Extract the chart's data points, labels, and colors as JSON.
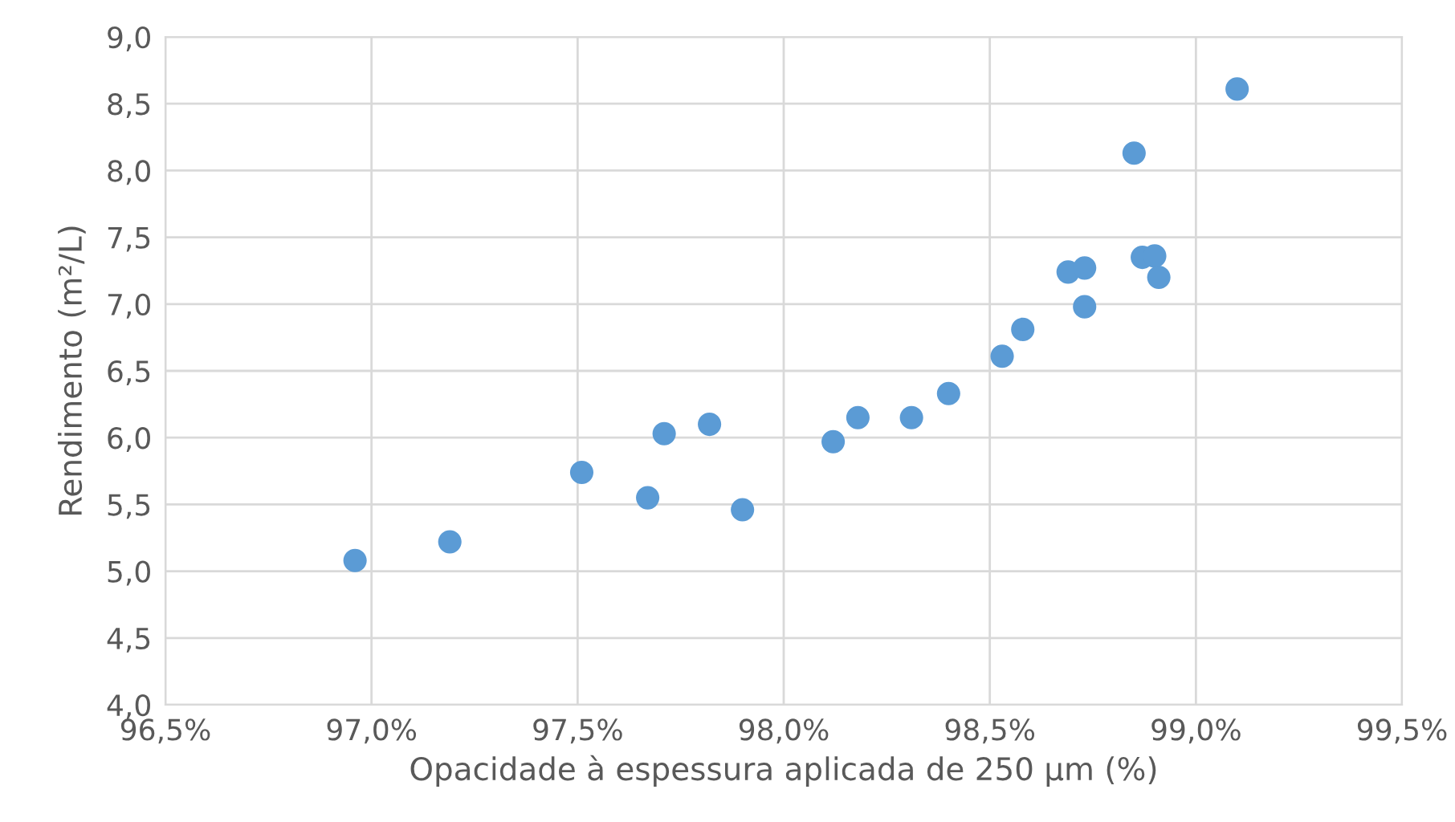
{
  "chart_data": {
    "type": "scatter",
    "xlabel": "Opacidade à espessura aplicada de 250 µm (%)",
    "ylabel": "Rendimento (m²/L)",
    "x": [
      96.96,
      97.19,
      97.51,
      97.67,
      97.71,
      97.82,
      97.9,
      98.12,
      98.18,
      98.31,
      98.4,
      98.53,
      98.58,
      98.69,
      98.73,
      98.73,
      98.85,
      98.87,
      98.9,
      98.91,
      99.1
    ],
    "series": [
      {
        "color": "#5b9bd5",
        "values": [
          5.08,
          5.22,
          5.74,
          5.55,
          6.03,
          6.1,
          5.46,
          5.97,
          6.15,
          6.15,
          6.33,
          6.61,
          6.81,
          7.24,
          7.27,
          6.98,
          8.13,
          7.35,
          7.36,
          7.2,
          8.61
        ]
      }
    ],
    "xlim": [
      96.5,
      99.5
    ],
    "xticks": [
      {
        "value": 96.5,
        "label": "96,5%"
      },
      {
        "value": 97.0,
        "label": "97,0%"
      },
      {
        "value": 97.5,
        "label": "97,5%"
      },
      {
        "value": 98.0,
        "label": "98,0%"
      },
      {
        "value": 98.5,
        "label": "98,5%"
      },
      {
        "value": 99.0,
        "label": "99,0%"
      },
      {
        "value": 99.5,
        "label": "99,5%"
      }
    ],
    "ylim": [
      4.0,
      9.0
    ],
    "yticks": [
      {
        "value": 4.0,
        "label": "4,0"
      },
      {
        "value": 4.5,
        "label": "4,5"
      },
      {
        "value": 5.0,
        "label": "5,0"
      },
      {
        "value": 5.5,
        "label": "5,5"
      },
      {
        "value": 6.0,
        "label": "6,0"
      },
      {
        "value": 6.5,
        "label": "6,5"
      },
      {
        "value": 7.0,
        "label": "7,0"
      },
      {
        "value": 7.5,
        "label": "7,5"
      },
      {
        "value": 8.0,
        "label": "8,0"
      },
      {
        "value": 8.5,
        "label": "8,5"
      },
      {
        "value": 9.0,
        "label": "9,0"
      }
    ],
    "grid": true,
    "marker": "circle"
  }
}
